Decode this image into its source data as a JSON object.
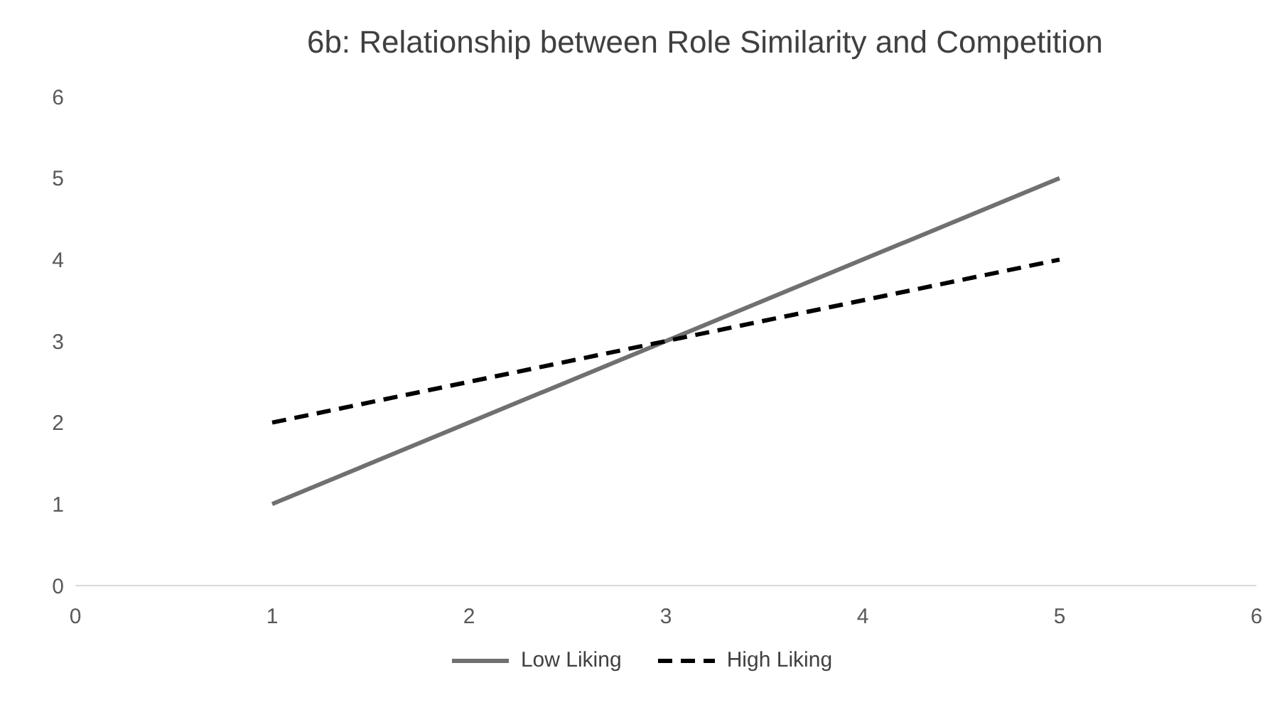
{
  "chart_data": {
    "type": "line",
    "title": "6b: Relationship between Role Similarity and Competition",
    "x": [
      1,
      5
    ],
    "xlim": [
      0,
      6
    ],
    "xticks": [
      0,
      1,
      2,
      3,
      4,
      5,
      6
    ],
    "ylim": [
      0,
      6
    ],
    "yticks": [
      0,
      1,
      2,
      3,
      4,
      5,
      6
    ],
    "grid": false,
    "legend": "bottom",
    "marker": "none",
    "series": [
      {
        "name": "Low Liking",
        "color": "#707070",
        "line_style": "solid",
        "values": [
          1,
          5
        ]
      },
      {
        "name": "High Liking",
        "color": "#000000",
        "line_style": "dashed",
        "values": [
          2,
          4
        ]
      }
    ]
  }
}
